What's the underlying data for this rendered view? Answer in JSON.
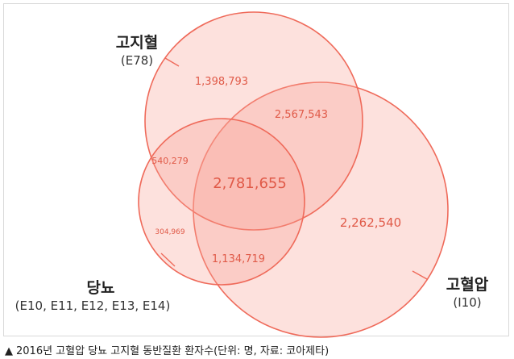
{
  "sets": {
    "hyperlipidemia": {
      "title": "고지혈",
      "code": "(E78)"
    },
    "diabetes": {
      "title": "당뇨",
      "code": "(E10, E11, E12, E13, E14)"
    },
    "hypertension": {
      "title": "고혈압",
      "code": "(I10)"
    }
  },
  "regions": {
    "lipid_only": "1,398,793",
    "lipid_bp": "2,567,543",
    "lipid_dm": "540,279",
    "all_three": "2,781,655",
    "bp_only": "2,262,540",
    "dm_only": "304,969",
    "dm_bp": "1,134,719"
  },
  "caption": {
    "marker": "▲",
    "text": "2016년 고혈압 당뇨 고지혈 동반질환 환자수(단위: 명, 자료: 코아제타)"
  },
  "colors": {
    "stroke": "#ef6a5a",
    "fill": "#f9a394",
    "number": "#e05a48"
  }
}
